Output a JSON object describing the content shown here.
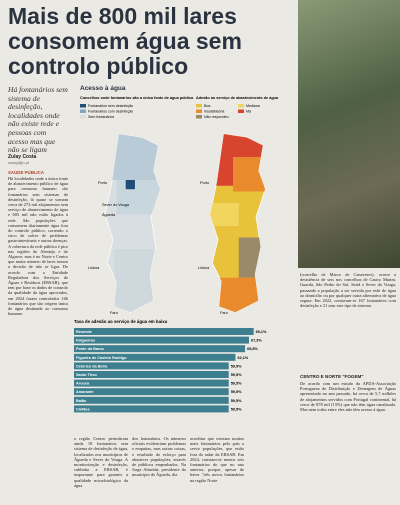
{
  "header": {
    "title": "Mais de 800 mil lares consomem água sem controlo público",
    "lead": "Há fontanários sem sistema de desinfeção, localidades onde não existe rede e pessoas com acesso mas que não se ligam",
    "author": "Zulay Costa",
    "author_email": "zulay@jn.pt"
  },
  "maps": {
    "title": "Acesso à água",
    "left": {
      "title": "Concelhos onde fontanários são a única fonte de água pública",
      "legend": [
        "Fontanários sem desinfeção",
        "Fontanários com desinfeção",
        "Sem fontanários"
      ],
      "labels": [
        "Porto",
        "Sever do Vouga",
        "Águeda",
        "Lisboa",
        "Faro"
      ]
    },
    "right": {
      "title": "Adesão ao serviço de abastecimento de água",
      "legend": [
        "Boa",
        "Mediana",
        "Insatisfatória",
        "Má",
        "Não respondeu"
      ],
      "labels": [
        "Porto",
        "Lisboa",
        "Faro"
      ]
    }
  },
  "chart_data": {
    "type": "bar",
    "title": "Taxa de adesão ao serviço de água em baixa",
    "categories": [
      "Resende",
      "Felgueiras",
      "Ponte da Barca",
      "Figueira de Castelo Rodrigo",
      "Celorico da Beira",
      "Santo Tirso",
      "Arouca",
      "Amarante",
      "Baião",
      "Cinfães"
    ],
    "values": [
      69.1,
      67.3,
      65.8,
      62.1,
      59.5,
      59.5,
      59.5,
      59.5,
      59.5,
      59.5
    ],
    "value_labels": [
      "69,1%",
      "67,3%",
      "65,8%",
      "62,1%",
      "59,5%",
      "59,5%",
      "59,5%",
      "59,5%",
      "59,5%",
      "59,5%"
    ],
    "color": "#3d7f8e"
  },
  "body": {
    "kicker": "SAÚDE PÚBLICA",
    "columns": [
      "Há localidades onde a única fonte de abastecimento público de água para consumo humano são fontanários sem sistemas de desinfeção, lá quase se somam cerca de 273 mil alojamentos sem serviço de abastecimento de água e 605 mil não estão ligados à rede. São populações que consomem diariamente água fora do controlo público, correndo o risco de sofrer de problemas gastrointestinais e outras doenças. A cobertura da rede pública é pior nas regiões do Alentejo e do Algarve, mas é no Norte e Centro que maior número de lares tomou a decisão de não se ligar. De acordo com a Entidade Reguladora dos Serviços de Águas e Resíduos (ERSAR), que tem por base os dados de controlo da qualidade da água aprovados, em 2024 foram controlados 166 fontanários que são origem única de água destinada ao consumo humano.",
      "a região Centro permitiram ainda 18 fontanários sem sistema de desinfeção de água, localizados nos municípios de Águeda e Sever do Vouga. A monitorização e desinfeção, sublinha a ERSAR, é importante para garantir a qualidade microbiológica da água",
      "dos fontanários. Os números oficiais evidenciam problemas e empatias, mas outras coisas, o resultado do esforço para abastecer populações, através de públicos empenhados. Na Jorge Almeida, presidente do município de Águeda, diz",
      "acreditar que existam muitos mais fontanários pelo país a servir populações, que estão fora do radar da ERSAR. Em 2024, constam-se menos seis fontanários do que no ano anterior, porque, apesar de haver \"três novos fontanários na região Norte"
    ],
    "right_columns": [
      "(concelho de Marco de Canaveses), ocorre a desistência de seis nos concelhos de Castro Marim, Guarda, São Pedro do Sul, Sertã e Sever do Vouga, passando a população a ser servida por rede de água ao domicílio ou por qualquer outra alternativa de água segura. Em 2022, contavam-se 167 fontanários com desinfeção e 21 sem este tipo de sistema."
    ],
    "section": "CENTRO E NORTE \"FOGEM\"",
    "section_text": "De acordo com um estudo da APDA-Associação Portuguesa de Distribuição e Drenagem de Águas apresentado no ano passado, há cerca de 5,7 milhões de alojamentos servidos com Portugal continental, há cerca de 878 mil (15%) que não têm água canalizada. Mas nem todos entre eles não têm acesso à água."
  }
}
